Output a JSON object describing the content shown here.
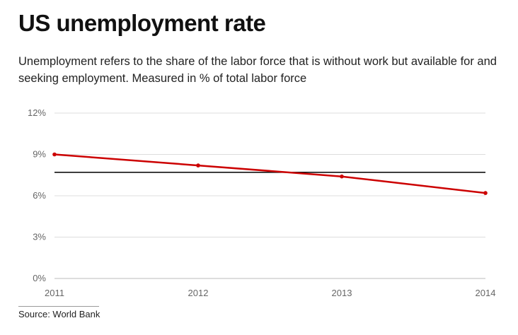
{
  "header": {
    "title": "US unemployment rate",
    "subtitle": "Unemployment refers to the share of the labor force that is without work but available for and seeking employment. Measured in % of total labor force"
  },
  "source": "Source: World Bank",
  "chart_data": {
    "type": "line",
    "title": "US unemployment rate",
    "x": [
      "2011",
      "2012",
      "2013",
      "2014"
    ],
    "series": [
      {
        "values": [
          9.0,
          8.2,
          7.4,
          6.2
        ],
        "color": "#cc0000"
      }
    ],
    "reference_line": {
      "value": 7.7,
      "color": "#111111"
    },
    "ylim": [
      0,
      12
    ],
    "yticks": [
      0,
      3,
      6,
      9,
      12
    ],
    "ytick_labels": [
      "0%",
      "3%",
      "6%",
      "9%",
      "12%"
    ],
    "xlabel": "",
    "ylabel": "",
    "grid": true,
    "legend": "none"
  }
}
